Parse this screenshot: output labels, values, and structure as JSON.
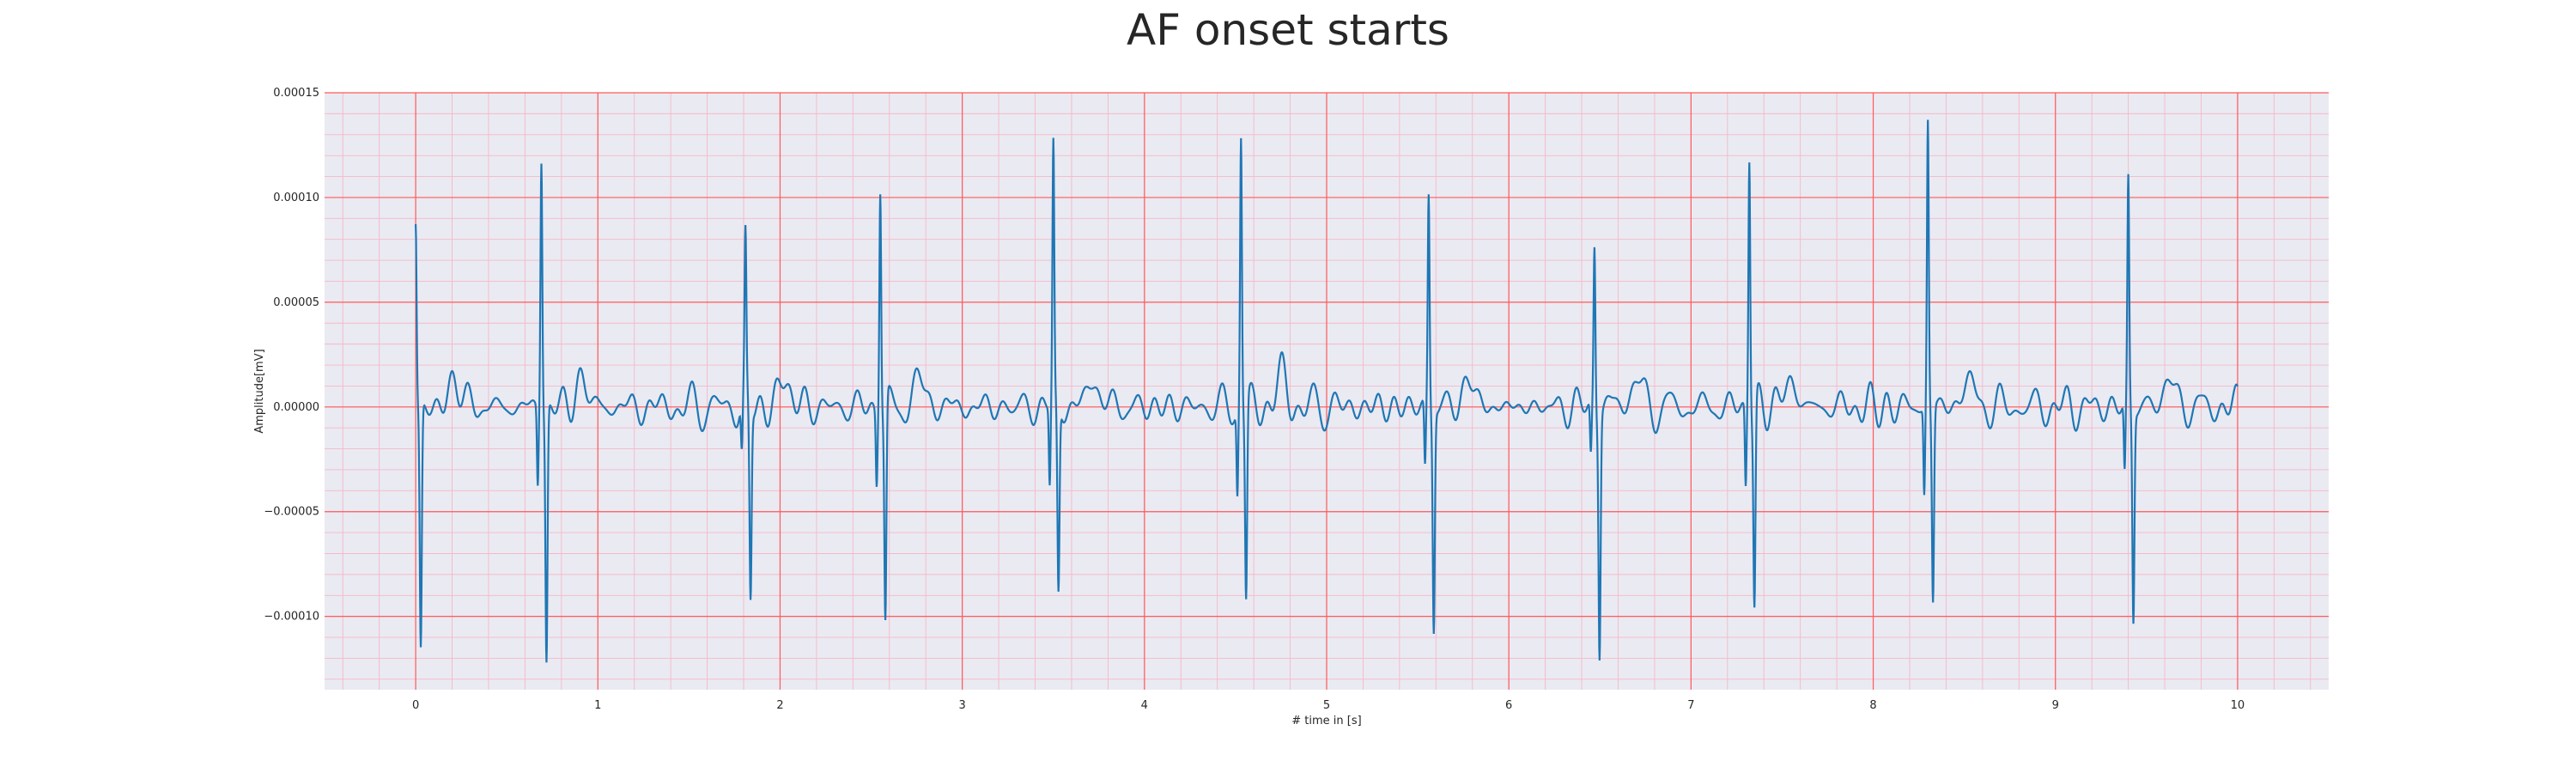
{
  "chart_data": {
    "type": "line",
    "title": "AF onset starts",
    "xlabel": "# time in [s]",
    "ylabel": "Amplitude[mV]",
    "xlim": [
      -0.5,
      10.5
    ],
    "ylim": [
      -0.000135,
      0.00015
    ],
    "x_ticks": [
      0,
      1,
      2,
      3,
      4,
      5,
      6,
      7,
      8,
      9,
      10
    ],
    "x_tick_labels": [
      "0",
      "1",
      "2",
      "3",
      "4",
      "5",
      "6",
      "7",
      "8",
      "9",
      "10"
    ],
    "y_ticks": [
      0.00015,
      0.0001,
      5e-05,
      0.0,
      -5e-05,
      -0.0001
    ],
    "y_tick_labels": [
      "0.00015",
      "0.00010",
      "0.00005",
      "0.00000",
      "−0.00005",
      "−0.00010"
    ],
    "grid": true,
    "minor_grid": true,
    "series": [
      {
        "line_color": "#1f77b4",
        "beats": [
          {
            "t": 0.0,
            "r": 8.7e-05,
            "s": -0.000117
          },
          {
            "t": 0.69,
            "r": 0.000121,
            "s": -0.000122
          },
          {
            "t": 1.81,
            "r": 7.7e-05,
            "s": -9.1e-05
          },
          {
            "t": 2.55,
            "r": 0.00011,
            "s": -0.000106
          },
          {
            "t": 3.5,
            "r": 0.000124,
            "s": -9e-05
          },
          {
            "t": 4.53,
            "r": 0.000131,
            "s": -9.4e-05
          },
          {
            "t": 5.56,
            "r": 0.000102,
            "s": -0.000104
          },
          {
            "t": 6.47,
            "r": 7.9e-05,
            "s": -0.000114
          },
          {
            "t": 7.32,
            "r": 0.000124,
            "s": -9.7e-05
          },
          {
            "t": 8.3,
            "r": 0.000137,
            "s": -9.3e-05
          },
          {
            "t": 9.4,
            "r": 0.000108,
            "s": -0.0001
          }
        ],
        "baseline_noise_amplitude": 1.2e-05,
        "x_end": 10.0
      }
    ]
  },
  "style": {
    "plot_bg": "#eaeaf2",
    "major_grid_color": "#ff5a5a",
    "minor_grid_color": "#f4b8c8",
    "line_color": "#1f77b4"
  }
}
